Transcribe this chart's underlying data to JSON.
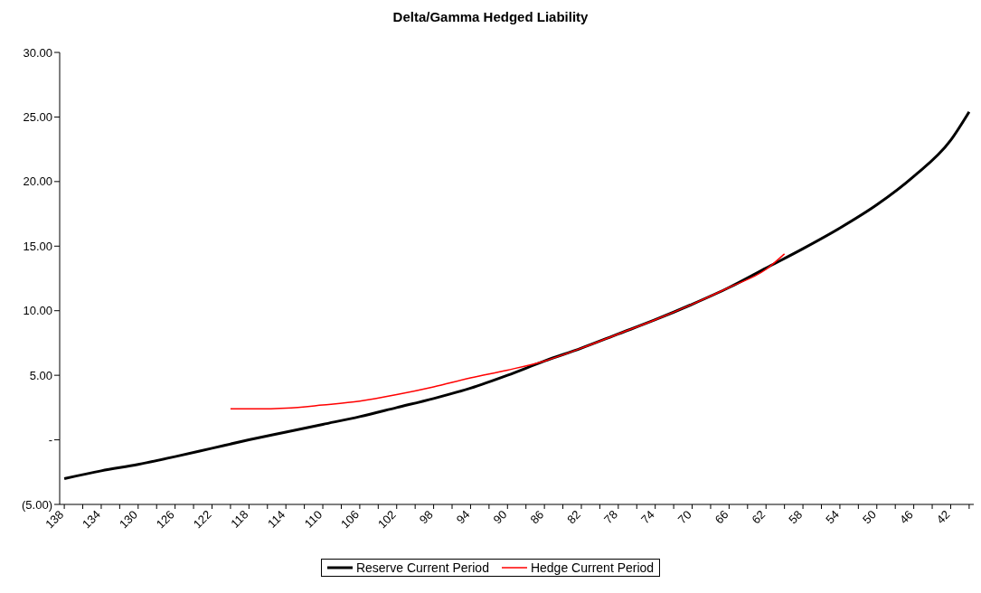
{
  "chart_data": {
    "type": "line",
    "title": "Delta/Gamma Hedged Liability",
    "xlim": [
      138.5,
      39.5
    ],
    "xticks": [
      138,
      {
        "value": 136,
        "label": null
      },
      134,
      {
        "value": 132,
        "label": null
      },
      130,
      {
        "value": 128,
        "label": null
      },
      126,
      {
        "value": 124,
        "label": null
      },
      122,
      {
        "value": 120,
        "label": null
      },
      118,
      {
        "value": 116,
        "label": null
      },
      114,
      {
        "value": 112,
        "label": null
      },
      110,
      {
        "value": 108,
        "label": null
      },
      106,
      {
        "value": 104,
        "label": null
      },
      102,
      {
        "value": 100,
        "label": null
      },
      98,
      {
        "value": 96,
        "label": null
      },
      94,
      {
        "value": 92,
        "label": null
      },
      90,
      {
        "value": 88,
        "label": null
      },
      86,
      {
        "value": 84,
        "label": null
      },
      82,
      {
        "value": 80,
        "label": null
      },
      78,
      {
        "value": 76,
        "label": null
      },
      74,
      {
        "value": 72,
        "label": null
      },
      70,
      {
        "value": 68,
        "label": null
      },
      66,
      {
        "value": 64,
        "label": null
      },
      62,
      {
        "value": 60,
        "label": null
      },
      58,
      {
        "value": 56,
        "label": null
      },
      54,
      {
        "value": 52,
        "label": null
      },
      50,
      {
        "value": 48,
        "label": null
      },
      46,
      {
        "value": 44,
        "label": null
      },
      42,
      {
        "value": 40,
        "label": null
      }
    ],
    "ylim": [
      -5,
      30
    ],
    "yticks": [
      {
        "value": -5,
        "label": "(5.00)"
      },
      {
        "value": 0,
        "label": "-"
      },
      {
        "value": 5,
        "label": "5.00"
      },
      {
        "value": 10,
        "label": "10.00"
      },
      {
        "value": 15,
        "label": "15.00"
      },
      {
        "value": 20,
        "label": "20.00"
      },
      {
        "value": 25,
        "label": "25.00"
      },
      {
        "value": 30,
        "label": "30.00"
      }
    ],
    "grid": false,
    "legend": "bottom",
    "marker": "none",
    "line_style": "solid",
    "series": [
      {
        "name": "Reserve Current Period",
        "color": "#000000",
        "x": [
          138,
          134,
          130,
          126,
          122,
          118,
          114,
          110,
          106,
          102,
          98,
          94,
          90,
          86,
          82,
          78,
          74,
          70,
          66,
          62,
          58,
          54,
          50,
          46,
          42,
          40
        ],
        "values": [
          -3.0,
          -2.4,
          -1.9,
          -1.3,
          -0.65,
          0,
          0.6,
          1.2,
          1.8,
          2.5,
          3.2,
          4.0,
          5.0,
          6.1,
          7.1,
          8.2,
          9.3,
          10.5,
          11.8,
          13.3,
          14.8,
          16.4,
          18.2,
          20.4,
          23.2,
          25.4
        ]
      },
      {
        "name": "Hedge Current Period",
        "color": "#ff0000",
        "x": [
          120,
          116,
          114,
          110,
          106,
          102,
          98,
          94,
          90,
          86,
          82,
          78,
          74,
          70,
          66,
          62,
          60
        ],
        "values": [
          2.4,
          2.4,
          2.45,
          2.7,
          3.0,
          3.5,
          4.1,
          4.8,
          5.4,
          6.1,
          7.1,
          8.2,
          9.3,
          10.5,
          11.8,
          13.2,
          14.4
        ]
      }
    ]
  }
}
